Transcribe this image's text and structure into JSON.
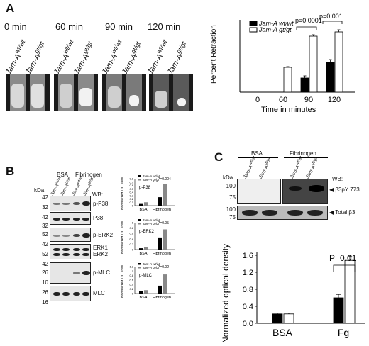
{
  "panel_a": {
    "label": "A",
    "times": [
      "0 min",
      "60 min",
      "90 min",
      "120 min"
    ],
    "genotypes": [
      "Jam-A",
      "Jam-A"
    ],
    "genotype_sup": [
      "wt/wt",
      "gt/gt"
    ],
    "chart": {
      "ylabel": "Percent  Retraction",
      "xlabel": "Time in minutes",
      "legend": [
        "Jam-A wt/wt",
        "Jam-A gt/gt"
      ],
      "pvalues": [
        "p=0.0001",
        "p=0.001"
      ]
    }
  },
  "panel_b": {
    "label": "B",
    "conditions": [
      "BSA",
      "Fibrinogen"
    ],
    "kda_label": "kDa",
    "wb_label": "WB:",
    "kda_values": [
      "42",
      "32",
      "42",
      "32",
      "52",
      "42",
      "52",
      "42",
      "26",
      "10",
      "26",
      "16"
    ],
    "blots": [
      "p-P38",
      "P38",
      "p-ERK2",
      "ERK1",
      "ERK2",
      "p-MLC",
      "MLC"
    ],
    "charts": [
      {
        "name": "p-P38",
        "pvalue": "P=0.004"
      },
      {
        "name": "p-ERK2",
        "pvalue": "P=0.05"
      },
      {
        "name": "p-MLC",
        "pvalue": "P=0.02"
      }
    ],
    "chart_ylabel": "Normalized OD units",
    "chart_xlabels": [
      "BSA",
      "Fibrinogen"
    ]
  },
  "panel_c": {
    "label": "C",
    "conditions": [
      "BSA",
      "Fibrinogen"
    ],
    "kda_label": "kDa",
    "wb_label": "WB:",
    "kda_values": [
      "100",
      "75",
      "100",
      "75"
    ],
    "blots": [
      "β3pY 773",
      "Total β3"
    ],
    "chart": {
      "ylabel": "Normalized optical density units",
      "categories": [
        "BSA",
        "Fg"
      ],
      "pvalue": "P=0.01",
      "yticks": [
        "0.0",
        "0.4",
        "0.8",
        "1.2",
        "1.6"
      ]
    }
  },
  "chart_data": [
    {
      "type": "bar",
      "title": "",
      "categories": [
        "0",
        "60",
        "90",
        "120"
      ],
      "series": [
        {
          "name": "Jam-A wt/wt",
          "values": [
            0,
            0,
            20,
            42
          ]
        },
        {
          "name": "Jam-A gt/gt",
          "values": [
            0,
            35,
            79,
            85
          ]
        }
      ],
      "errors": [
        [
          0,
          0,
          3,
          4
        ],
        [
          0,
          1,
          2,
          3
        ]
      ],
      "xlabel": "Time in minutes",
      "ylabel": "Percent  Retraction",
      "ylim": [
        0,
        100
      ],
      "grid": false,
      "legend": "top-left",
      "annotations": [
        "p=0.0001",
        "p=0.001"
      ]
    },
    {
      "type": "bar",
      "title": "p-P38",
      "categories": [
        "BSA",
        "Fibrinogen"
      ],
      "series": [
        {
          "name": "Jam-A wt/wt",
          "values": [
            0.05,
            0.25
          ]
        },
        {
          "name": "Jam-A gt/gt",
          "values": [
            0.1,
            0.65
          ]
        }
      ],
      "ylabel": "Normalized OD units",
      "ylim": [
        0,
        0.8
      ],
      "yticks": [
        "0",
        "0.1",
        "0.2",
        "0.3",
        "0.4",
        "0.5",
        "0.6",
        "0.7",
        "0.8"
      ],
      "annotations": [
        "P=0.004"
      ]
    },
    {
      "type": "bar",
      "title": "p-ERK2",
      "categories": [
        "BSA",
        "Fibrinogen"
      ],
      "series": [
        {
          "name": "Jam-A wt/wt",
          "values": [
            0.05,
            0.45
          ]
        },
        {
          "name": "Jam-A gt/gt",
          "values": [
            0.08,
            0.75
          ]
        }
      ],
      "ylabel": "Normalized OD units",
      "ylim": [
        0,
        1.0
      ],
      "yticks": [
        "0",
        "0.2",
        "0.4",
        "0.6",
        "0.8",
        "1"
      ],
      "annotations": [
        "P=0.05"
      ]
    },
    {
      "type": "bar",
      "title": "p-MLC",
      "categories": [
        "BSA",
        "Fibrinogen"
      ],
      "series": [
        {
          "name": "Jam-A wt/wt",
          "values": [
            0.1,
            0.35
          ]
        },
        {
          "name": "Jam-A gt/gt",
          "values": [
            0.15,
            0.85
          ]
        }
      ],
      "ylabel": "Normalized OD units",
      "ylim": [
        0,
        1.2
      ],
      "yticks": [
        "0",
        "0.2",
        "0.4",
        "0.6",
        "0.8",
        "1",
        "1.2"
      ],
      "annotations": [
        "P=0.02"
      ]
    },
    {
      "type": "bar",
      "title": "",
      "categories": [
        "BSA",
        "Fg"
      ],
      "series": [
        {
          "name": "Jam-A wt/wt",
          "values": [
            0.22,
            0.6
          ]
        },
        {
          "name": "Jam-A gt/gt",
          "values": [
            0.22,
            1.48
          ]
        }
      ],
      "errors": [
        [
          0.02,
          0.08
        ],
        [
          0.02,
          0.1
        ]
      ],
      "ylabel": "Normalized optical density units",
      "ylim": [
        0,
        1.6
      ],
      "annotations": [
        "P=0.01"
      ]
    }
  ],
  "colors": {
    "wt": "#000000",
    "gt": "#ffffff",
    "gt_b": "#888888",
    "blot_bg": "#e6e6e6"
  }
}
